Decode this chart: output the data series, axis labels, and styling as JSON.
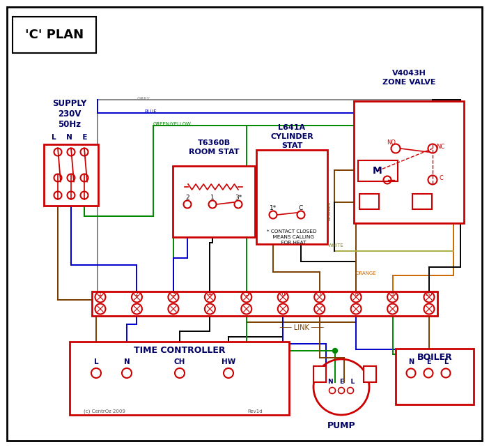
{
  "title": "'C' PLAN",
  "bg_color": "#ffffff",
  "red": "#cc0000",
  "blue": "#0000cc",
  "green": "#008800",
  "grey": "#888888",
  "brown": "#7B3F00",
  "orange": "#cc6600",
  "black": "#000000",
  "dark_blue": "#000066",
  "supply_l1": "SUPPLY",
  "supply_l2": "230V",
  "supply_l3": "50Hz",
  "supply_lne": "L    N    E",
  "room_stat_l1": "T6360B",
  "room_stat_l2": "ROOM STAT",
  "cyl_stat_l1": "L641A",
  "cyl_stat_l2": "CYLINDER",
  "cyl_stat_l3": "STAT",
  "zone_valve_l1": "V4043H",
  "zone_valve_l2": "ZONE VALVE",
  "tc_title": "TIME CONTROLLER",
  "pump_title": "PUMP",
  "boiler_title": "BOILER",
  "link_label": "LINK",
  "footnote": "* CONTACT CLOSED\n  MEANS CALLING\n  FOR HEAT",
  "copyright": "(c) CentrOz 2009",
  "rev": "Rev1d",
  "no_label": "NO",
  "nc_label": "NC",
  "c_label": "C",
  "m_label": "M",
  "grey_label": "GREY",
  "blue_label": "BLUE",
  "green_yellow_label": "GREEN/YELLOW",
  "brown_label": "BROWN",
  "white_label": "WHITE",
  "orange_label": "ORANGE"
}
